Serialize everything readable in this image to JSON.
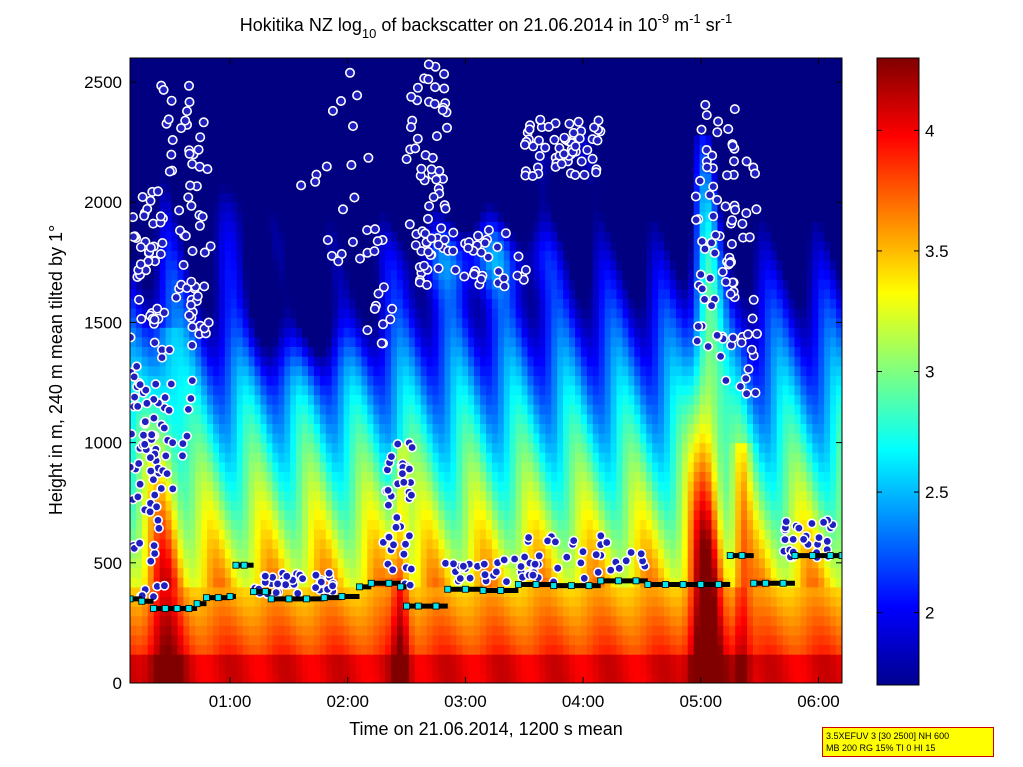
{
  "chart_data": {
    "type": "heatmap",
    "title_parts": {
      "prefix": "Hokitika NZ log",
      "sub": "10",
      "middle": " of backscatter on 21.06.2014 in 10",
      "exp1": "-9",
      "m_unit": " m",
      "exp2": "-1",
      "sr_unit": " sr",
      "exp3": "-1"
    },
    "xlabel": "Time on 21.06.2014, 1200 s mean",
    "ylabel": "Height in m, 240 m mean tilted by 1°",
    "x_range_hours": [
      0.15,
      6.2
    ],
    "ylim": [
      0,
      2600
    ],
    "x_ticks": [
      {
        "value": 1,
        "label": "01:00"
      },
      {
        "value": 2,
        "label": "02:00"
      },
      {
        "value": 3,
        "label": "03:00"
      },
      {
        "value": 4,
        "label": "04:00"
      },
      {
        "value": 5,
        "label": "05:00"
      },
      {
        "value": 6,
        "label": "06:00"
      }
    ],
    "y_ticks": [
      {
        "value": 0,
        "label": "0"
      },
      {
        "value": 500,
        "label": "500"
      },
      {
        "value": 1000,
        "label": "1000"
      },
      {
        "value": 1500,
        "label": "1500"
      },
      {
        "value": 2000,
        "label": "2000"
      },
      {
        "value": 2500,
        "label": "2500"
      }
    ],
    "colorbar": {
      "range": [
        1.7,
        4.3
      ],
      "colormap": "jet",
      "ticks": [
        {
          "value": 2,
          "label": "2"
        },
        {
          "value": 2.5,
          "label": "2.5"
        },
        {
          "value": 3,
          "label": "3"
        },
        {
          "value": 3.5,
          "label": "3.5"
        },
        {
          "value": 4,
          "label": "4"
        }
      ]
    },
    "layer_base_markers": {
      "color": "#000000",
      "marker_edge": "#00e5ee",
      "points": [
        [
          0.15,
          350
        ],
        [
          0.25,
          340
        ],
        [
          0.35,
          310
        ],
        [
          0.45,
          310
        ],
        [
          0.55,
          310
        ],
        [
          0.65,
          310
        ],
        [
          0.72,
          330
        ],
        [
          0.8,
          355
        ],
        [
          0.9,
          355
        ],
        [
          1.0,
          360
        ],
        [
          1.05,
          490
        ],
        [
          1.12,
          490
        ],
        [
          1.2,
          380
        ],
        [
          1.3,
          380
        ],
        [
          1.35,
          350
        ],
        [
          1.5,
          350
        ],
        [
          1.65,
          350
        ],
        [
          1.8,
          355
        ],
        [
          1.95,
          360
        ],
        [
          2.1,
          400
        ],
        [
          2.2,
          415
        ],
        [
          2.35,
          415
        ],
        [
          2.45,
          400
        ],
        [
          2.5,
          320
        ],
        [
          2.6,
          320
        ],
        [
          2.75,
          320
        ],
        [
          2.85,
          390
        ],
        [
          3.0,
          390
        ],
        [
          3.15,
          385
        ],
        [
          3.3,
          385
        ],
        [
          3.45,
          410
        ],
        [
          3.6,
          410
        ],
        [
          3.75,
          405
        ],
        [
          3.9,
          405
        ],
        [
          4.05,
          405
        ],
        [
          4.15,
          425
        ],
        [
          4.3,
          425
        ],
        [
          4.45,
          425
        ],
        [
          4.55,
          410
        ],
        [
          4.7,
          410
        ],
        [
          4.85,
          410
        ],
        [
          5.0,
          410
        ],
        [
          5.15,
          410
        ],
        [
          5.25,
          530
        ],
        [
          5.35,
          530
        ],
        [
          5.45,
          415
        ],
        [
          5.55,
          415
        ],
        [
          5.7,
          415
        ],
        [
          5.8,
          530
        ],
        [
          5.95,
          530
        ],
        [
          6.1,
          530
        ],
        [
          6.2,
          530
        ]
      ]
    },
    "cloud_markers": {
      "face": "#2020c0",
      "edge": "#ffffff",
      "clusters": [
        {
          "x": [
            0.15,
            0.45
          ],
          "y": [
            350,
            2050
          ],
          "n": 110
        },
        {
          "x": [
            0.4,
            0.75
          ],
          "y": [
            800,
            2500
          ],
          "n": 60
        },
        {
          "x": [
            0.65,
            0.85
          ],
          "y": [
            1400,
            2350
          ],
          "n": 20
        },
        {
          "x": [
            1.2,
            1.9
          ],
          "y": [
            370,
            460
          ],
          "n": 40
        },
        {
          "x": [
            1.6,
            2.2
          ],
          "y": [
            1750,
            2600
          ],
          "n": 20
        },
        {
          "x": [
            2.15,
            2.4
          ],
          "y": [
            1400,
            1900
          ],
          "n": 15
        },
        {
          "x": [
            2.3,
            2.55
          ],
          "y": [
            400,
            1000
          ],
          "n": 40
        },
        {
          "x": [
            2.5,
            2.85
          ],
          "y": [
            1800,
            2600
          ],
          "n": 50
        },
        {
          "x": [
            2.6,
            3.6
          ],
          "y": [
            1650,
            1900
          ],
          "n": 50
        },
        {
          "x": [
            2.8,
            3.6
          ],
          "y": [
            420,
            520
          ],
          "n": 30
        },
        {
          "x": [
            3.5,
            4.15
          ],
          "y": [
            2100,
            2350
          ],
          "n": 60
        },
        {
          "x": [
            3.5,
            4.6
          ],
          "y": [
            420,
            620
          ],
          "n": 35
        },
        {
          "x": [
            4.95,
            5.3
          ],
          "y": [
            1350,
            2450
          ],
          "n": 60
        },
        {
          "x": [
            5.2,
            5.5
          ],
          "y": [
            1200,
            2200
          ],
          "n": 30
        },
        {
          "x": [
            5.7,
            6.15
          ],
          "y": [
            520,
            680
          ],
          "n": 30
        }
      ]
    }
  },
  "info_box": {
    "line1": "3.5XEFUV 3 [30 2500] NH 600",
    "line2": "MB 200 RG 15% TI 0 HI 15"
  }
}
